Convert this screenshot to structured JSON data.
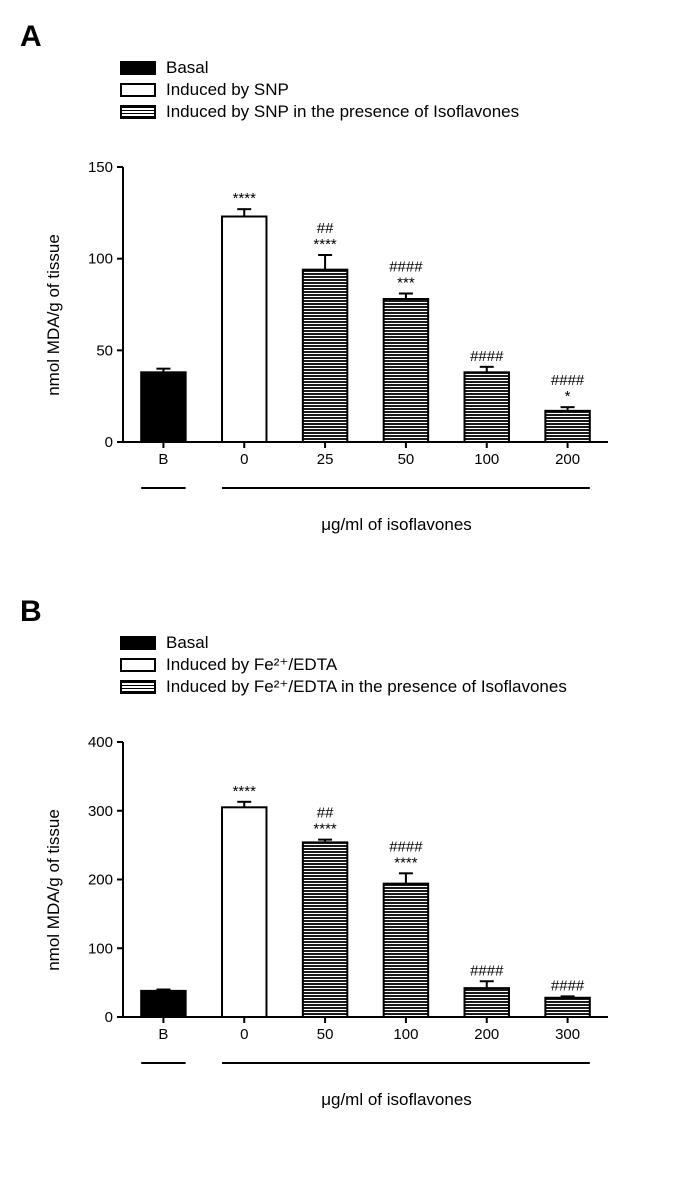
{
  "panels": {
    "A": {
      "label": "A",
      "legend": [
        {
          "label": "Basal",
          "fill": "#000000",
          "pattern": "solid"
        },
        {
          "label": "Induced by SNP",
          "fill": "#ffffff",
          "pattern": "none"
        },
        {
          "label": "Induced by SNP in the presence of Isoflavones",
          "fill": "#ffffff",
          "pattern": "hstripe"
        }
      ],
      "type": "bar",
      "ylabel": "nmol MDA/g of tissue",
      "xlabel": "μg/ml of isoflavones",
      "ylim": [
        0,
        150
      ],
      "ytick_step": 50,
      "categories": [
        "B",
        "0",
        "25",
        "50",
        "100",
        "200"
      ],
      "values": [
        38,
        123,
        94,
        78,
        38,
        17
      ],
      "errors": [
        2,
        4,
        8,
        3,
        3,
        2
      ],
      "fills": [
        "#000000",
        "#ffffff",
        "#ffffff",
        "#ffffff",
        "#ffffff",
        "#ffffff"
      ],
      "patterns": [
        "solid",
        "none",
        "hstripe",
        "hstripe",
        "hstripe",
        "hstripe"
      ],
      "annotations": [
        [],
        [
          "****"
        ],
        [
          "##",
          "****"
        ],
        [
          "####",
          "***"
        ],
        [
          "####"
        ],
        [
          "####",
          "*"
        ]
      ],
      "basal_sep_after_index": 0,
      "bar_width": 0.55,
      "axis_color": "#000000",
      "background_color": "#ffffff",
      "title_fontsize": 30,
      "label_fontsize": 17,
      "tick_fontsize": 15
    },
    "B": {
      "label": "B",
      "legend": [
        {
          "label": "Basal",
          "fill": "#000000",
          "pattern": "solid"
        },
        {
          "label": "Induced by Fe²⁺/EDTA",
          "fill": "#ffffff",
          "pattern": "none"
        },
        {
          "label": "Induced by Fe²⁺/EDTA in the presence of Isoflavones",
          "fill": "#ffffff",
          "pattern": "hstripe"
        }
      ],
      "type": "bar",
      "ylabel": "nmol MDA/g of tissue",
      "xlabel": "μg/ml of isoflavones",
      "ylim": [
        0,
        400
      ],
      "ytick_step": 100,
      "categories": [
        "B",
        "0",
        "50",
        "100",
        "200",
        "300"
      ],
      "values": [
        38,
        305,
        254,
        194,
        42,
        28
      ],
      "errors": [
        2,
        8,
        4,
        15,
        10,
        2
      ],
      "fills": [
        "#000000",
        "#ffffff",
        "#ffffff",
        "#ffffff",
        "#ffffff",
        "#ffffff"
      ],
      "patterns": [
        "solid",
        "none",
        "hstripe",
        "hstripe",
        "hstripe",
        "hstripe"
      ],
      "annotations": [
        [],
        [
          "****"
        ],
        [
          "##",
          "****"
        ],
        [
          "####",
          "****"
        ],
        [
          "####"
        ],
        [
          "####"
        ]
      ],
      "basal_sep_after_index": 0,
      "bar_width": 0.55,
      "axis_color": "#000000",
      "background_color": "#ffffff",
      "title_fontsize": 30,
      "label_fontsize": 17,
      "tick_fontsize": 15
    }
  }
}
